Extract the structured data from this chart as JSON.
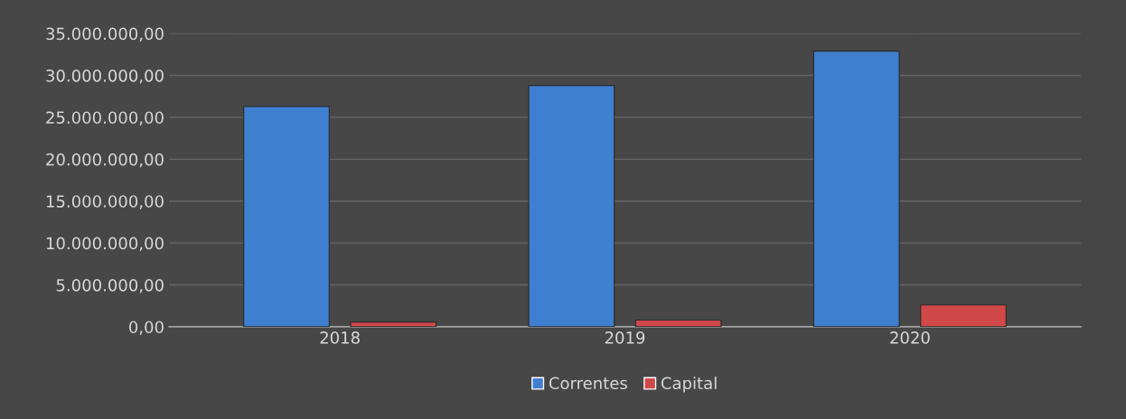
{
  "chart_data": {
    "type": "bar",
    "categories": [
      "2018",
      "2019",
      "2020"
    ],
    "series": [
      {
        "name": "Correntes",
        "color": "#3f7fd0",
        "values": [
          26300000,
          28800000,
          32900000
        ]
      },
      {
        "name": "Capital",
        "color": "#d04848",
        "values": [
          570000,
          800000,
          2600000
        ]
      }
    ],
    "ylim": [
      0,
      35000000
    ],
    "yticks": [
      {
        "value": 0,
        "label": "0,00"
      },
      {
        "value": 5000000,
        "label": "5.000.000,00"
      },
      {
        "value": 10000000,
        "label": "10.000.000,00"
      },
      {
        "value": 15000000,
        "label": "15.000.000,00"
      },
      {
        "value": 20000000,
        "label": "20.000.000,00"
      },
      {
        "value": 25000000,
        "label": "25.000.000,00"
      },
      {
        "value": 30000000,
        "label": "30.000.000,00"
      },
      {
        "value": 35000000,
        "label": "35.000.000,00"
      }
    ],
    "grid": "y",
    "legend": "bottom"
  }
}
